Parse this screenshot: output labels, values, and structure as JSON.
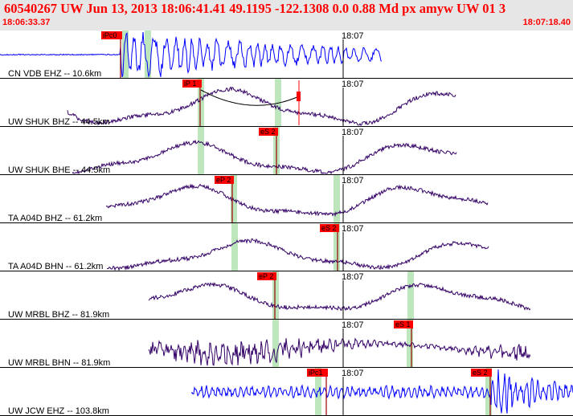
{
  "header": {
    "event_line": "60540267 UW Jun 13, 2013 18:06:41.41   49.1195 -122.1308   0.0 0.88 Md px amyw UW 01   3",
    "start_time": "18:06:33.37",
    "end_time": "18:07:18.40"
  },
  "colors": {
    "header_bg": "#e6e6e6",
    "title_red": "#ff0000",
    "trace_blue": "#0000ff",
    "trace_navy": "#330066",
    "pick_red": "#ff0000",
    "window_green": "#bde6bd"
  },
  "traces": [
    {
      "channel": "CN VDB EHZ -- 10.6km",
      "time_label": "18:07",
      "color": "blue",
      "picks": [
        {
          "label": "iPc0"
        }
      ]
    },
    {
      "channel": "UW SHUK BHZ -- 44.5km",
      "time_label": "18:07",
      "color": "navy",
      "picks": [
        {
          "label": "iP 1"
        }
      ]
    },
    {
      "channel": "UW SHUK BHE -- 44.5km",
      "time_label": "18:07",
      "color": "navy",
      "picks": [
        {
          "label": "eS 2"
        }
      ]
    },
    {
      "channel": "TA A04D BHZ -- 61.2km",
      "time_label": "18:07",
      "color": "navy",
      "picks": [
        {
          "label": "eP 2"
        }
      ]
    },
    {
      "channel": "TA A04D BHN -- 61.2km",
      "time_label": "18:07",
      "color": "navy",
      "picks": [
        {
          "label": "eS 2"
        }
      ]
    },
    {
      "channel": "UW MRBL BHZ -- 81.9km",
      "time_label": "18:07",
      "color": "navy",
      "picks": [
        {
          "label": "eP 2"
        }
      ]
    },
    {
      "channel": "UW MRBL BHN -- 81.9km",
      "time_label": "18:07",
      "color": "navy",
      "picks": [
        {
          "label": "eS 1"
        }
      ]
    },
    {
      "channel": "UW JCW EHZ -- 103.8km",
      "time_label": "18:07",
      "color": "blue",
      "picks": [
        {
          "label": "iPc1"
        },
        {
          "label": "eS 2"
        }
      ]
    }
  ]
}
